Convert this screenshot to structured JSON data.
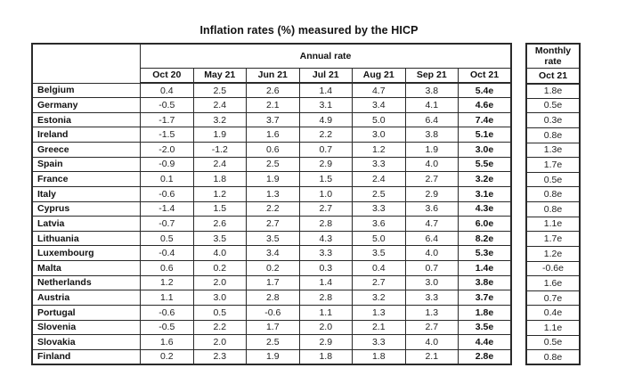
{
  "title": "Inflation rates (%) measured by the HICP",
  "annual_table": {
    "group_header": "Annual rate",
    "columns": [
      "Oct 20",
      "May 21",
      "Jun 21",
      "Jul 21",
      "Aug 21",
      "Sep 21",
      "Oct 21"
    ],
    "rows": [
      {
        "country": "Belgium",
        "values": [
          "0.4",
          "2.5",
          "2.6",
          "1.4",
          "4.7",
          "3.8",
          "5.4e"
        ]
      },
      {
        "country": "Germany",
        "values": [
          "-0.5",
          "2.4",
          "2.1",
          "3.1",
          "3.4",
          "4.1",
          "4.6e"
        ]
      },
      {
        "country": "Estonia",
        "values": [
          "-1.7",
          "3.2",
          "3.7",
          "4.9",
          "5.0",
          "6.4",
          "7.4e"
        ]
      },
      {
        "country": "Ireland",
        "values": [
          "-1.5",
          "1.9",
          "1.6",
          "2.2",
          "3.0",
          "3.8",
          "5.1e"
        ]
      },
      {
        "country": "Greece",
        "values": [
          "-2.0",
          "-1.2",
          "0.6",
          "0.7",
          "1.2",
          "1.9",
          "3.0e"
        ]
      },
      {
        "country": "Spain",
        "values": [
          "-0.9",
          "2.4",
          "2.5",
          "2.9",
          "3.3",
          "4.0",
          "5.5e"
        ]
      },
      {
        "country": "France",
        "values": [
          "0.1",
          "1.8",
          "1.9",
          "1.5",
          "2.4",
          "2.7",
          "3.2e"
        ]
      },
      {
        "country": "Italy",
        "values": [
          "-0.6",
          "1.2",
          "1.3",
          "1.0",
          "2.5",
          "2.9",
          "3.1e"
        ]
      },
      {
        "country": "Cyprus",
        "values": [
          "-1.4",
          "1.5",
          "2.2",
          "2.7",
          "3.3",
          "3.6",
          "4.3e"
        ]
      },
      {
        "country": "Latvia",
        "values": [
          "-0.7",
          "2.6",
          "2.7",
          "2.8",
          "3.6",
          "4.7",
          "6.0e"
        ]
      },
      {
        "country": "Lithuania",
        "values": [
          "0.5",
          "3.5",
          "3.5",
          "4.3",
          "5.0",
          "6.4",
          "8.2e"
        ]
      },
      {
        "country": "Luxembourg",
        "values": [
          "-0.4",
          "4.0",
          "3.4",
          "3.3",
          "3.5",
          "4.0",
          "5.3e"
        ]
      },
      {
        "country": "Malta",
        "values": [
          "0.6",
          "0.2",
          "0.2",
          "0.3",
          "0.4",
          "0.7",
          "1.4e"
        ]
      },
      {
        "country": "Netherlands",
        "values": [
          "1.2",
          "2.0",
          "1.7",
          "1.4",
          "2.7",
          "3.0",
          "3.8e"
        ]
      },
      {
        "country": "Austria",
        "values": [
          "1.1",
          "3.0",
          "2.8",
          "2.8",
          "3.2",
          "3.3",
          "3.7e"
        ]
      },
      {
        "country": "Portugal",
        "values": [
          "-0.6",
          "0.5",
          "-0.6",
          "1.1",
          "1.3",
          "1.3",
          "1.8e"
        ]
      },
      {
        "country": "Slovenia",
        "values": [
          "-0.5",
          "2.2",
          "1.7",
          "2.0",
          "2.1",
          "2.7",
          "3.5e"
        ]
      },
      {
        "country": "Slovakia",
        "values": [
          "1.6",
          "2.0",
          "2.5",
          "2.9",
          "3.3",
          "4.0",
          "4.4e"
        ]
      },
      {
        "country": "Finland",
        "values": [
          "0.2",
          "2.3",
          "1.9",
          "1.8",
          "1.8",
          "2.1",
          "2.8e"
        ]
      }
    ]
  },
  "monthly_table": {
    "group_header": "Monthly rate",
    "column": "Oct 21",
    "values": [
      "1.8e",
      "0.5e",
      "0.3e",
      "0.8e",
      "1.3e",
      "1.7e",
      "0.5e",
      "0.8e",
      "0.8e",
      "1.1e",
      "1.7e",
      "1.2e",
      "-0.6e",
      "1.6e",
      "0.7e",
      "0.4e",
      "1.1e",
      "0.5e",
      "0.8e"
    ]
  },
  "colors": {
    "border": "#2a2a2a",
    "text": "#1d1d1d",
    "background": "#ffffff"
  }
}
